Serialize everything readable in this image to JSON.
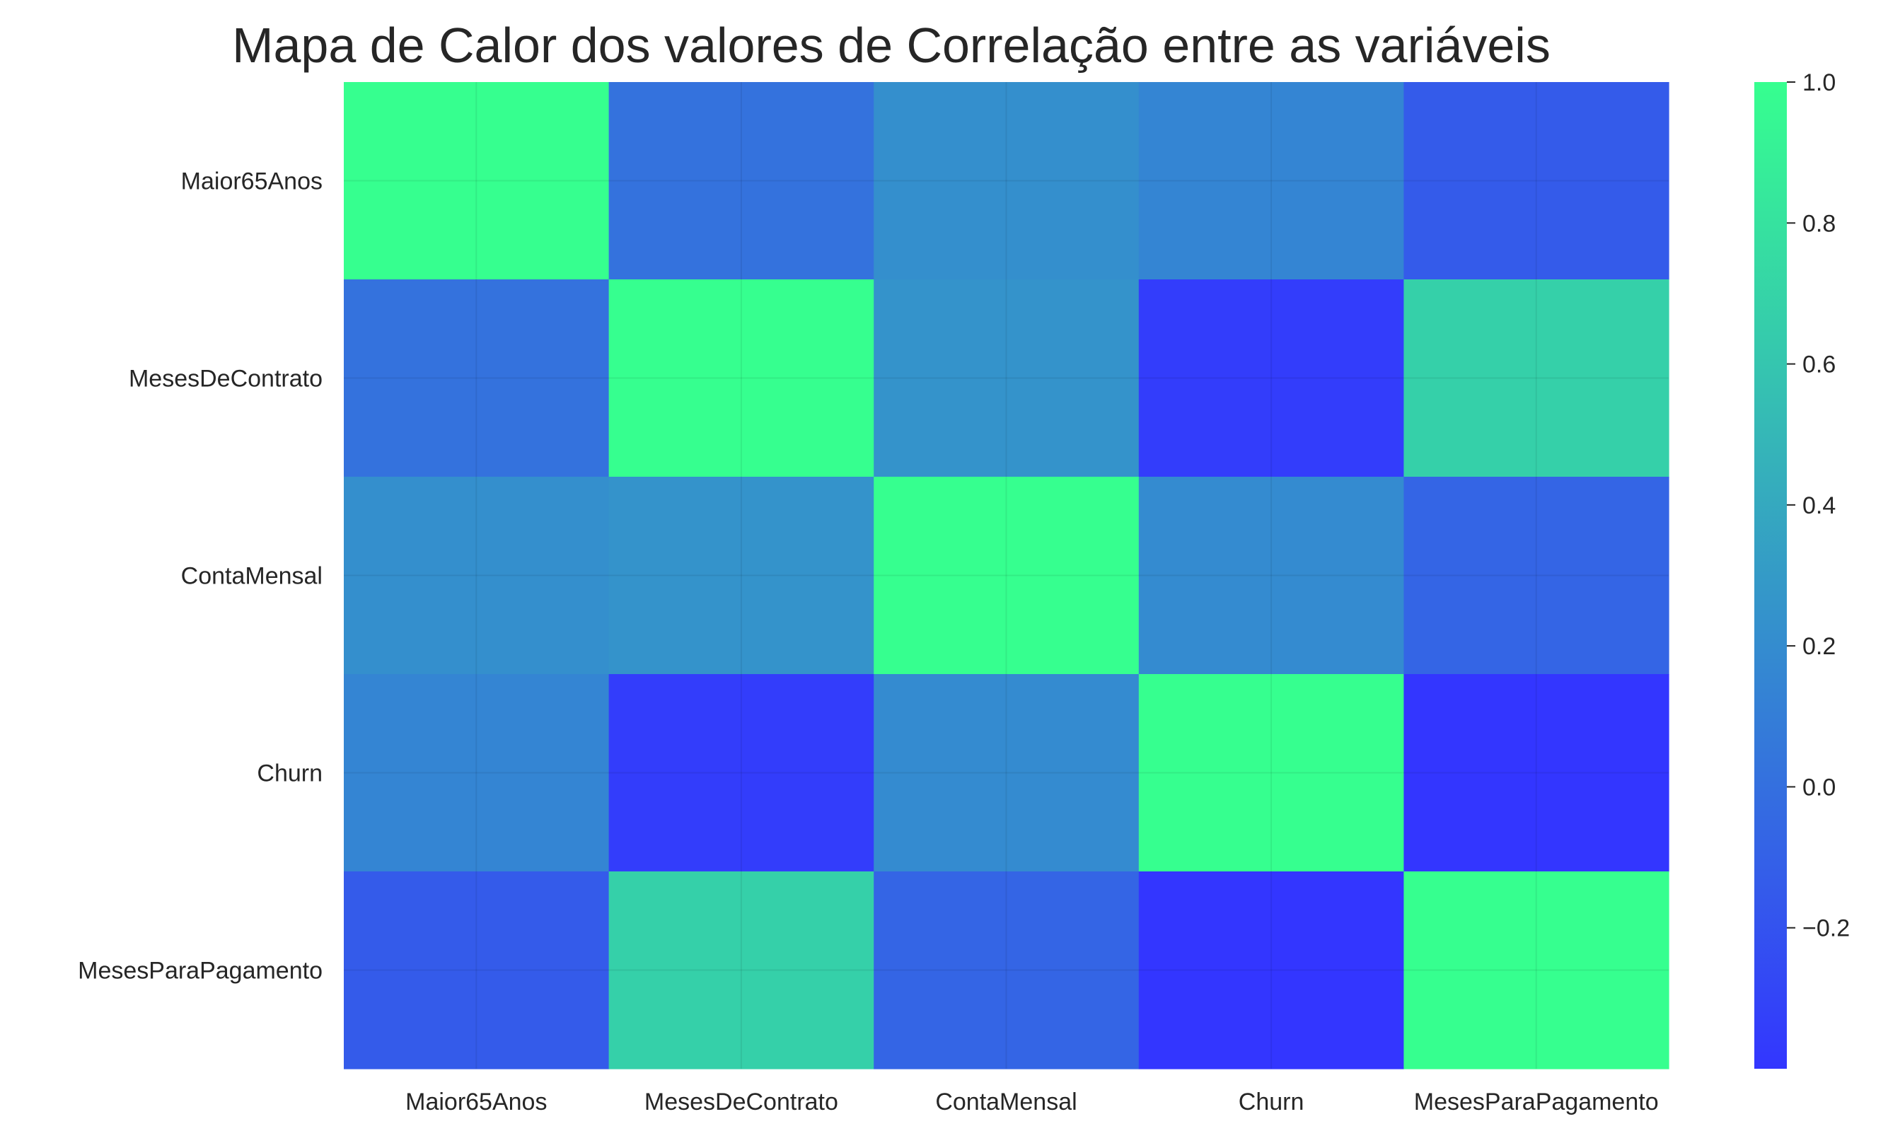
{
  "chart_data": {
    "type": "heatmap",
    "title": "Mapa de Calor dos valores de Correlação entre as variáveis",
    "rows": [
      "Maior65Anos",
      "MesesDeContrato",
      "ContaMensal",
      "Churn",
      "MesesParaPagamento"
    ],
    "cols": [
      "Maior65Anos",
      "MesesDeContrato",
      "ContaMensal",
      "Churn",
      "MesesParaPagamento"
    ],
    "values": [
      [
        1.0,
        0.02,
        0.22,
        0.15,
        -0.14
      ],
      [
        0.02,
        1.0,
        0.25,
        -0.35,
        0.67
      ],
      [
        0.22,
        0.25,
        1.0,
        0.19,
        -0.07
      ],
      [
        0.15,
        -0.35,
        0.19,
        1.0,
        -0.4
      ],
      [
        -0.14,
        0.67,
        -0.07,
        -0.4,
        1.0
      ]
    ],
    "colormap": {
      "min_color": "#3336ff",
      "max_color": "#36ff8f"
    },
    "colorbar": {
      "min": -0.4,
      "max": 1.0,
      "ticks": [
        1.0,
        0.8,
        0.6,
        0.4,
        0.2,
        0.0,
        -0.2
      ],
      "tick_labels": [
        "1.0",
        "0.8",
        "0.6",
        "0.4",
        "0.2",
        "0.0",
        "−0.2"
      ]
    },
    "grid": true
  }
}
